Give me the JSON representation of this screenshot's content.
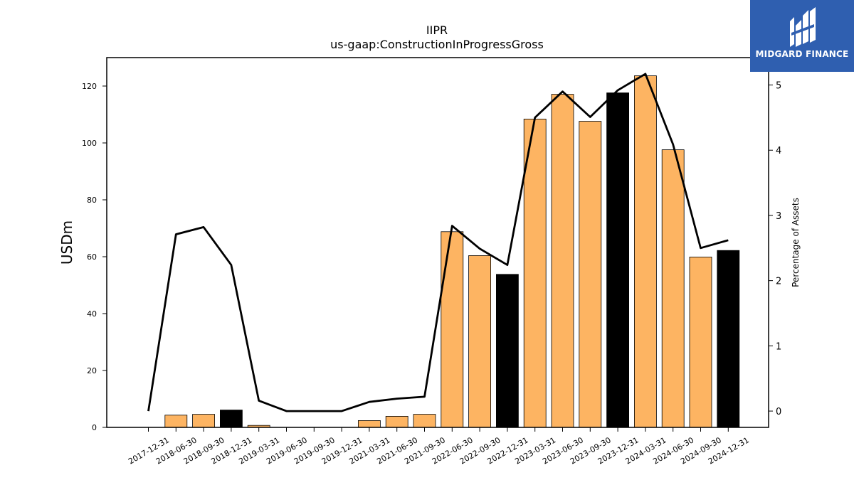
{
  "chart_data": {
    "type": "bar",
    "title": "IIPR",
    "subtitle": "us-gaap:ConstructionInProgressGross",
    "ylabel": "USDm",
    "y2label": "Percentage of Assets",
    "ylim": [
      0,
      130
    ],
    "y2lim": [
      -0.25,
      5.42
    ],
    "yticks": [
      0,
      20,
      40,
      60,
      80,
      100,
      120
    ],
    "y2ticks": [
      0,
      1,
      2,
      3,
      4,
      5
    ],
    "categories": [
      "2017-12-31",
      "2018-06-30",
      "2018-09-30",
      "2018-12-31",
      "2019-03-31",
      "2019-06-30",
      "2019-09-30",
      "2019-12-31",
      "2021-03-31",
      "2021-06-30",
      "2021-09-30",
      "2022-06-30",
      "2022-09-30",
      "2022-12-31",
      "2023-03-31",
      "2023-06-30",
      "2023-09-30",
      "2023-12-31",
      "2024-03-31",
      "2024-06-30",
      "2024-09-30",
      "2024-12-31"
    ],
    "series": [
      {
        "kind": "bar",
        "values": [
          0,
          4.3,
          4.6,
          6.1,
          0.7,
          0,
          0,
          0,
          2.4,
          3.9,
          4.6,
          68.8,
          60.4,
          53.8,
          108.4,
          117.1,
          107.6,
          117.6,
          123.6,
          97.6,
          59.9,
          62.2
        ],
        "colors": [
          "#fdb462",
          "#fdb462",
          "#fdb462",
          "#000000",
          "#fdb462",
          "#fdb462",
          "#fdb462",
          "#fdb462",
          "#fdb462",
          "#fdb462",
          "#fdb462",
          "#fdb462",
          "#fdb462",
          "#000000",
          "#fdb462",
          "#fdb462",
          "#fdb462",
          "#000000",
          "#fdb462",
          "#fdb462",
          "#fdb462",
          "#000000"
        ]
      },
      {
        "kind": "line",
        "axis": "right",
        "color": "#000000",
        "values": [
          0,
          2.71,
          2.82,
          2.24,
          0.16,
          0,
          0,
          0,
          0.14,
          0.19,
          0.22,
          2.84,
          2.49,
          2.24,
          4.5,
          4.9,
          4.51,
          4.92,
          5.17,
          4.09,
          2.5,
          2.62
        ]
      }
    ],
    "legend": "none",
    "grid": false
  },
  "logo": {
    "text": "MIDGARD FINANCE",
    "background": "#2f5fb0"
  }
}
